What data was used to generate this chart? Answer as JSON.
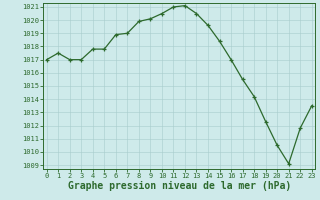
{
  "x": [
    0,
    1,
    2,
    3,
    4,
    5,
    6,
    7,
    8,
    9,
    10,
    11,
    12,
    13,
    14,
    15,
    16,
    17,
    18,
    19,
    20,
    21,
    22,
    23
  ],
  "y": [
    1017.0,
    1017.5,
    1017.0,
    1017.0,
    1017.8,
    1017.8,
    1018.9,
    1019.0,
    1019.9,
    1020.1,
    1020.5,
    1021.0,
    1021.1,
    1020.5,
    1019.6,
    1018.4,
    1017.0,
    1015.5,
    1014.2,
    1012.3,
    1010.5,
    1009.1,
    1011.8,
    1013.5
  ],
  "line_color": "#2d6a2d",
  "marker": "+",
  "bg_color": "#ceeaea",
  "grid_color": "#a8cccc",
  "xlabel": "Graphe pression niveau de la mer (hPa)",
  "xlabel_fontsize": 7.0,
  "ylim_min": 1009,
  "ylim_max": 1021,
  "xlim_min": 0,
  "xlim_max": 23,
  "yticks": [
    1009,
    1010,
    1011,
    1012,
    1013,
    1014,
    1015,
    1016,
    1017,
    1018,
    1019,
    1020,
    1021
  ],
  "xticks": [
    0,
    1,
    2,
    3,
    4,
    5,
    6,
    7,
    8,
    9,
    10,
    11,
    12,
    13,
    14,
    15,
    16,
    17,
    18,
    19,
    20,
    21,
    22,
    23
  ],
  "tick_fontsize": 5.0,
  "marker_size": 3.5,
  "linewidth": 0.9
}
